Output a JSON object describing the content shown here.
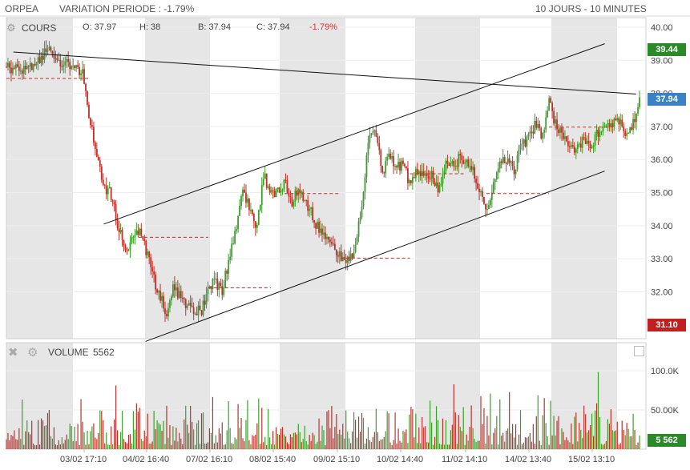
{
  "header": {
    "symbol": "ORPEA",
    "variation": "VARIATION PERIODE : -1.79%",
    "range": "10 JOURS - 10 MINUTES"
  },
  "price_panel": {
    "label": "COURS",
    "open": "O: 37.97",
    "high": "H: 38",
    "bid": "B: 37.94",
    "close": "C: 37.94",
    "change": "-1.79%",
    "tag_high": "39.44",
    "tag_last": "37.94",
    "tag_low": "31.10"
  },
  "volume_panel": {
    "label": "VOLUME",
    "value": "5562",
    "tag_last": "5 562"
  },
  "colors": {
    "up": "#3aa02a",
    "down": "#c0302a",
    "shade": "#e6e6e6",
    "tag_high": "#2a8a2a",
    "tag_last": "#3b82c4",
    "tag_low": "#c02020",
    "change": "#e0302a"
  },
  "chart_data": {
    "type": "candlestick",
    "x_labels": [
      "03/02 17:10",
      "04/02 16:40",
      "07/02 16:10",
      "08/02 15:40",
      "09/02 15:10",
      "10/02 14:40",
      "11/02 14:10",
      "14/02 13:40",
      "15/02 13:10"
    ],
    "price_axis": {
      "ticks": [
        "40.00",
        "39.00",
        "38.00",
        "37.00",
        "36.00",
        "35.00",
        "34.00",
        "33.00",
        "32.00"
      ],
      "range": [
        30.8,
        40.2
      ]
    },
    "volume_axis": {
      "ticks": [
        "100.0K",
        "50.00K"
      ],
      "range": [
        0,
        120000
      ]
    },
    "price_path": [
      [
        0,
        38.8
      ],
      [
        2,
        38.7
      ],
      [
        4,
        38.9
      ],
      [
        6,
        39.3
      ],
      [
        8,
        38.9
      ],
      [
        10,
        38.85
      ],
      [
        11,
        38.6
      ],
      [
        12,
        37.2
      ],
      [
        13,
        36.1
      ],
      [
        14,
        35.2
      ],
      [
        15,
        35.0
      ],
      [
        16,
        34.0
      ],
      [
        17,
        33.3
      ],
      [
        18,
        33.5
      ],
      [
        19,
        33.9
      ],
      [
        20,
        33.3
      ],
      [
        21,
        32.5
      ],
      [
        22,
        31.9
      ],
      [
        23,
        31.4
      ],
      [
        24,
        32.1
      ],
      [
        26,
        31.6
      ],
      [
        28,
        31.4
      ],
      [
        29,
        32.1
      ],
      [
        30,
        32.3
      ],
      [
        31,
        32.0
      ],
      [
        33,
        34.0
      ],
      [
        34,
        35.0
      ],
      [
        35,
        34.5
      ],
      [
        36,
        34.0
      ],
      [
        37,
        35.5
      ],
      [
        38,
        35.0
      ],
      [
        39,
        35.0
      ],
      [
        40,
        35.3
      ],
      [
        41,
        34.6
      ],
      [
        42,
        35.2
      ],
      [
        43,
        34.7
      ],
      [
        44,
        34.3
      ],
      [
        45,
        33.8
      ],
      [
        47,
        33.3
      ],
      [
        49,
        32.9
      ],
      [
        50,
        33.2
      ],
      [
        51,
        34.5
      ],
      [
        52,
        36.5
      ],
      [
        53,
        36.9
      ],
      [
        54,
        35.6
      ],
      [
        55,
        36.1
      ],
      [
        56,
        35.9
      ],
      [
        57,
        35.8
      ],
      [
        58,
        35.3
      ],
      [
        59,
        35.7
      ],
      [
        60,
        35.5
      ],
      [
        61,
        35.6
      ],
      [
        62,
        35.1
      ],
      [
        63,
        35.8
      ],
      [
        64,
        35.8
      ],
      [
        65,
        36.0
      ],
      [
        66,
        35.9
      ],
      [
        67,
        35.8
      ],
      [
        68,
        35.0
      ],
      [
        69,
        34.4
      ],
      [
        70,
        35.2
      ],
      [
        71,
        36.0
      ],
      [
        72,
        36.0
      ],
      [
        73,
        35.7
      ],
      [
        74,
        36.4
      ],
      [
        75,
        36.6
      ],
      [
        76,
        37.1
      ],
      [
        77,
        36.6
      ],
      [
        78,
        37.8
      ],
      [
        79,
        37.0
      ],
      [
        80,
        36.7
      ],
      [
        81,
        36.5
      ],
      [
        82,
        36.3
      ],
      [
        83,
        36.6
      ],
      [
        84,
        36.4
      ],
      [
        85,
        36.8
      ],
      [
        86,
        36.9
      ],
      [
        87,
        37.1
      ],
      [
        88,
        37.2
      ],
      [
        89,
        36.8
      ],
      [
        90,
        37.0
      ],
      [
        91,
        37.94
      ]
    ],
    "candle_count": 400,
    "levels": [
      {
        "price": 38.45,
        "x0": 0,
        "x1": 12
      },
      {
        "price": 33.65,
        "x0": 19,
        "x1": 29
      },
      {
        "price": 32.12,
        "x0": 29,
        "x1": 38
      },
      {
        "price": 34.97,
        "x0": 40,
        "x1": 48
      },
      {
        "price": 33.02,
        "x0": 48,
        "x1": 58
      },
      {
        "price": 35.57,
        "x0": 58,
        "x1": 66
      },
      {
        "price": 34.97,
        "x0": 69,
        "x1": 78
      },
      {
        "price": 36.98,
        "x0": 78,
        "x1": 87
      }
    ],
    "trendlines": [
      {
        "x0": 1,
        "p0": 39.25,
        "x1": 90.5,
        "p1": 37.98
      },
      {
        "x0": 14,
        "p0": 34.05,
        "x1": 86,
        "p1": 39.5
      },
      {
        "x0": 20,
        "p0": 30.5,
        "x1": 86,
        "p1": 35.65
      }
    ]
  }
}
